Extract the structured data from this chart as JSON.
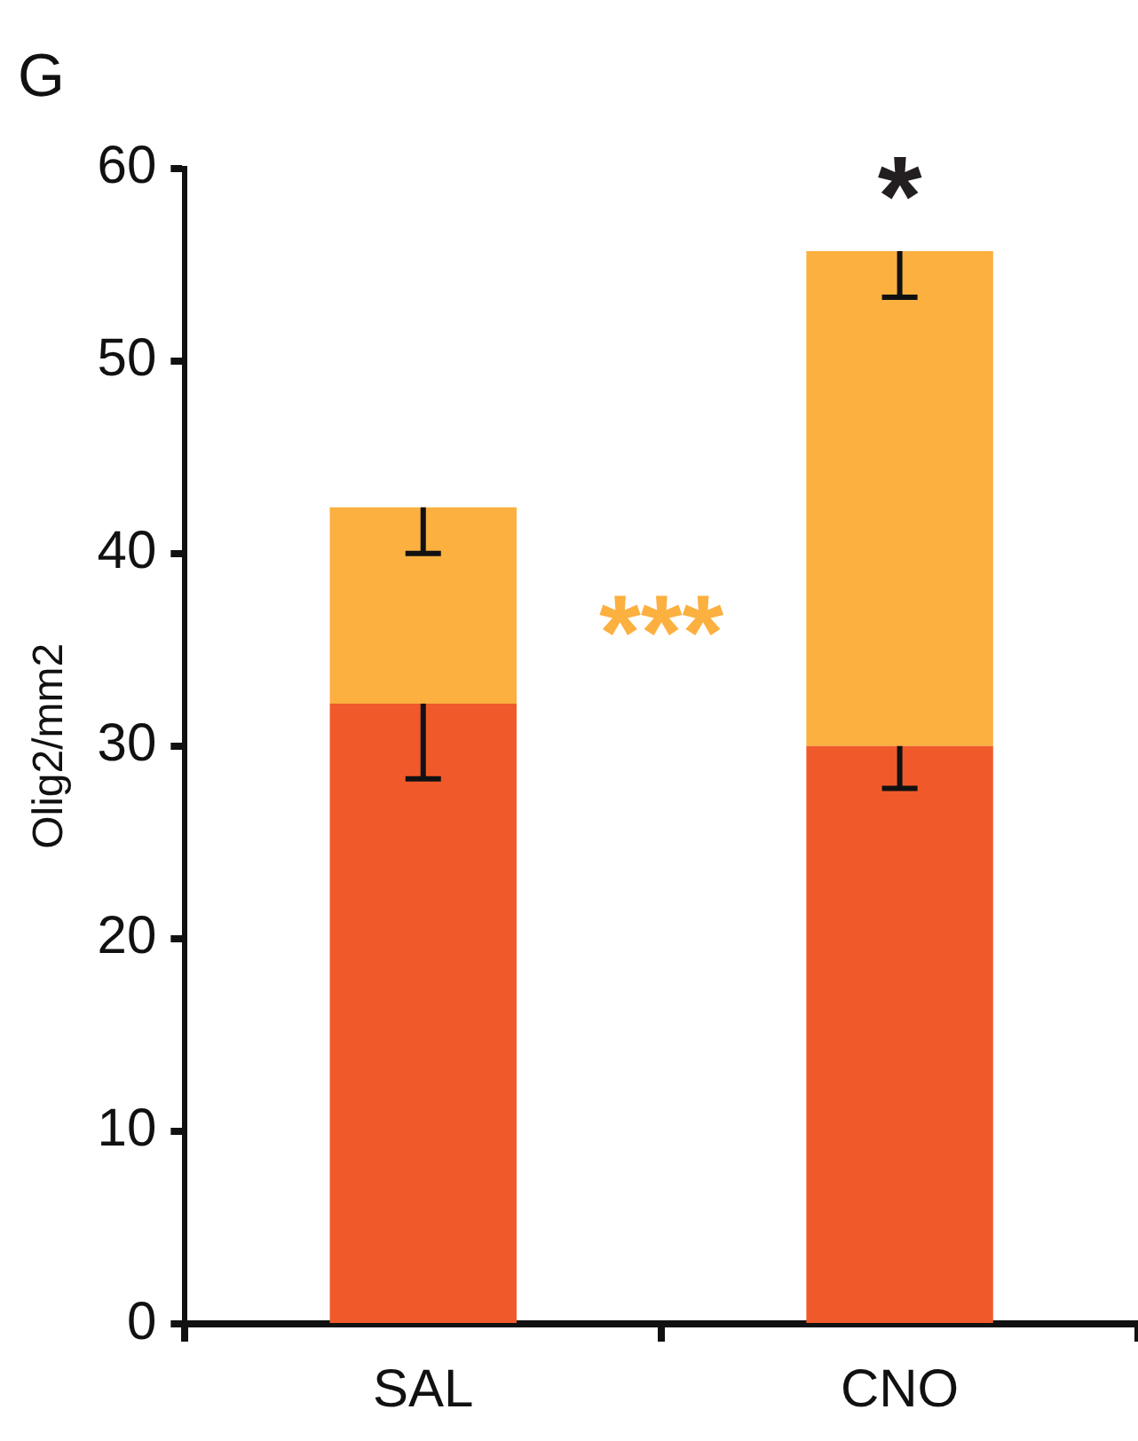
{
  "chart_data": {
    "type": "bar",
    "title": "G",
    "ylabel": "Olig2/mm2",
    "categories": [
      "SAL",
      "CNO"
    ],
    "stacked": true,
    "series": [
      {
        "color": "#f05a2a",
        "values": [
          32.2,
          30.0
        ],
        "errors": [
          [
            28.3,
            32.2
          ],
          [
            27.8,
            30.0
          ]
        ]
      },
      {
        "color": "#fbb040",
        "values": [
          10.2,
          25.7
        ],
        "errors": [
          [
            40.0,
            42.4
          ],
          [
            53.3,
            55.7
          ]
        ]
      }
    ],
    "ylim": [
      0,
      60
    ],
    "yticks": [
      0,
      10,
      20,
      30,
      40,
      50,
      60
    ],
    "grid": false,
    "legend": false,
    "annotations": [
      "*",
      "***"
    ]
  }
}
